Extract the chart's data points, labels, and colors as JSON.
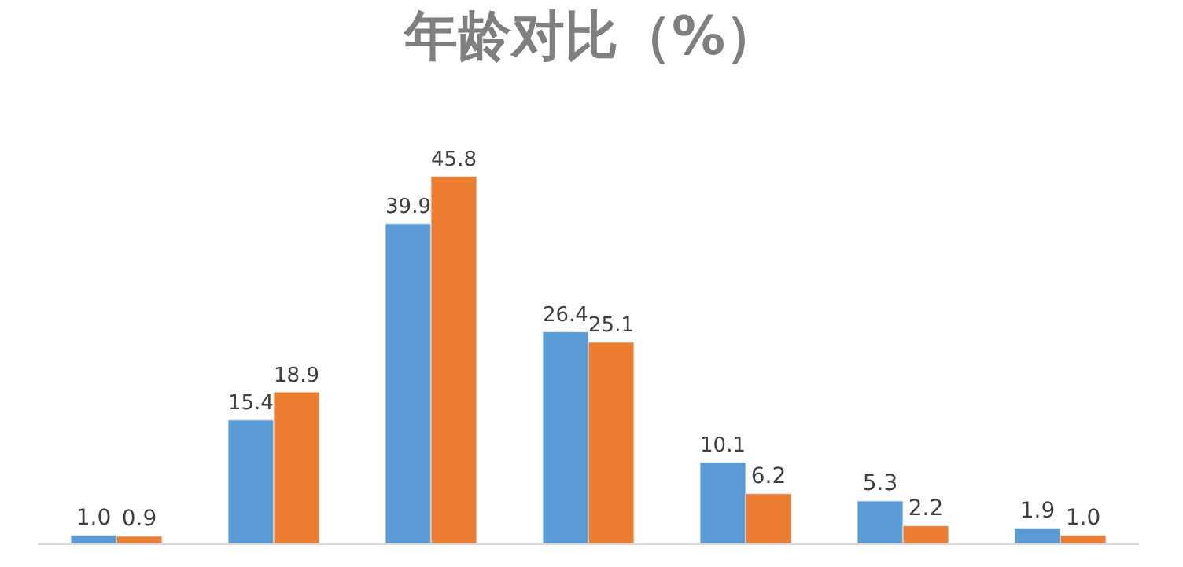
{
  "chart_data": {
    "type": "bar",
    "title": "年龄对比（%）",
    "categories": [
      null,
      null,
      null,
      null,
      null,
      null,
      null
    ],
    "series": [
      {
        "color": "#5b9bd5",
        "values": [
          1.0,
          15.4,
          39.9,
          26.4,
          10.1,
          5.3,
          1.9
        ],
        "value_labels": [
          "1.0",
          "15.4",
          "39.9",
          "26.4",
          "10.1",
          "5.3",
          "1.9"
        ]
      },
      {
        "color": "#ed7d31",
        "values": [
          0.9,
          18.9,
          45.8,
          25.1,
          6.2,
          2.2,
          1.0
        ],
        "value_labels": [
          "0.9",
          "18.9",
          "45.8",
          "25.1",
          "6.2",
          "2.2",
          "1.0"
        ]
      }
    ],
    "legend": false,
    "tick_labels": false
  }
}
